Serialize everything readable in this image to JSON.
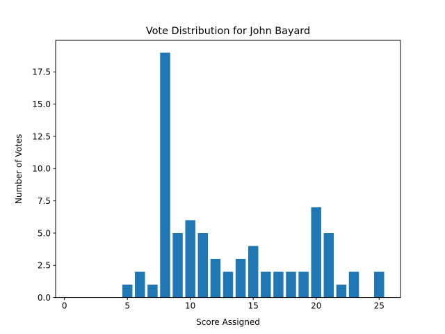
{
  "chart_data": {
    "type": "bar",
    "title": "Vote Distribution for John Bayard",
    "xlabel": "Score Assigned",
    "ylabel": "Number of Votes",
    "x": [
      5,
      6,
      7,
      8,
      9,
      10,
      11,
      12,
      13,
      14,
      15,
      16,
      17,
      18,
      19,
      20,
      21,
      22,
      23,
      25
    ],
    "values": [
      1,
      2,
      1,
      19,
      5,
      6,
      5,
      3,
      2,
      3,
      4,
      2,
      2,
      2,
      2,
      7,
      5,
      1,
      2,
      2
    ],
    "xlim": [
      -0.7,
      26.7
    ],
    "ylim": [
      0,
      19.95
    ],
    "xticks": [
      0,
      5,
      10,
      15,
      20,
      25
    ],
    "xtick_labels": [
      "0",
      "5",
      "10",
      "15",
      "20",
      "25"
    ],
    "yticks": [
      0,
      2.5,
      5,
      7.5,
      10,
      12.5,
      15,
      17.5
    ],
    "ytick_labels": [
      "0.0",
      "2.5",
      "5.0",
      "7.5",
      "10.0",
      "12.5",
      "15.0",
      "17.5"
    ],
    "bar_color": "#1f77b4",
    "grid": false,
    "legend": "none"
  }
}
